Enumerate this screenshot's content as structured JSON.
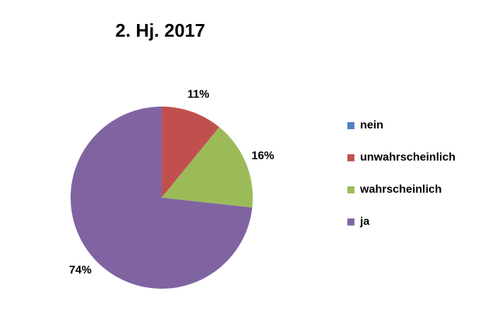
{
  "chart_data": {
    "type": "pie",
    "title": "2. Hj. 2017",
    "categories": [
      "nein",
      "unwahrscheinlich",
      "wahrscheinlich",
      "ja"
    ],
    "values": [
      0,
      11,
      16,
      74
    ],
    "value_labels": [
      null,
      "11%",
      "16%",
      "74%"
    ],
    "colors": [
      "#4f81bd",
      "#c0504d",
      "#9bbb59",
      "#8064a2"
    ],
    "legend": "right"
  }
}
